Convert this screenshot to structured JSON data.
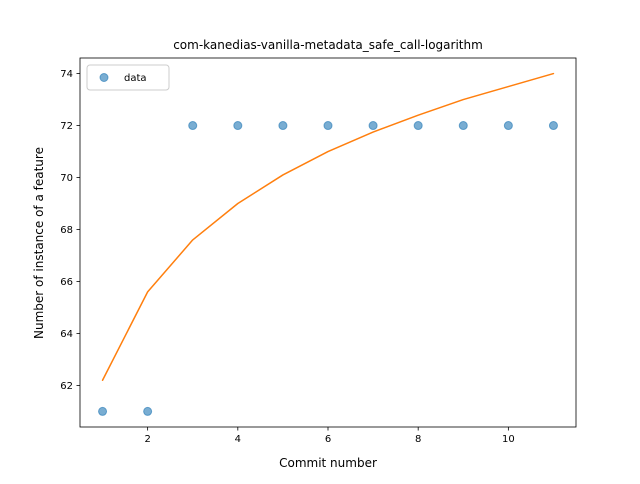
{
  "chart_data": {
    "type": "scatter",
    "title": "com-kanedias-vanilla-metadata_safe_call-logarithm",
    "xlabel": "Commit number",
    "ylabel": "Number of instance of a feature",
    "xlim": [
      0.5,
      11.5
    ],
    "ylim": [
      60.4,
      74.6
    ],
    "xticks": [
      2,
      4,
      6,
      8,
      10
    ],
    "yticks": [
      62,
      64,
      66,
      68,
      70,
      72,
      74
    ],
    "grid": false,
    "legend": {
      "placement": "top-left",
      "entries": [
        "data"
      ]
    },
    "series": [
      {
        "name": "data",
        "kind": "scatter",
        "color": "#1f77b4",
        "x": [
          1,
          2,
          3,
          4,
          5,
          6,
          7,
          8,
          9,
          10,
          11
        ],
        "y": [
          61,
          61,
          72,
          72,
          72,
          72,
          72,
          72,
          72,
          72,
          72
        ]
      },
      {
        "kind": "line",
        "color": "#ff7f0e",
        "x": [
          1,
          2,
          3,
          4,
          5,
          6,
          7,
          8,
          9,
          10,
          11
        ],
        "y": [
          62.2,
          65.6,
          67.6,
          69.0,
          70.1,
          71.0,
          71.75,
          72.4,
          73.0,
          73.5,
          74.0
        ]
      }
    ]
  }
}
